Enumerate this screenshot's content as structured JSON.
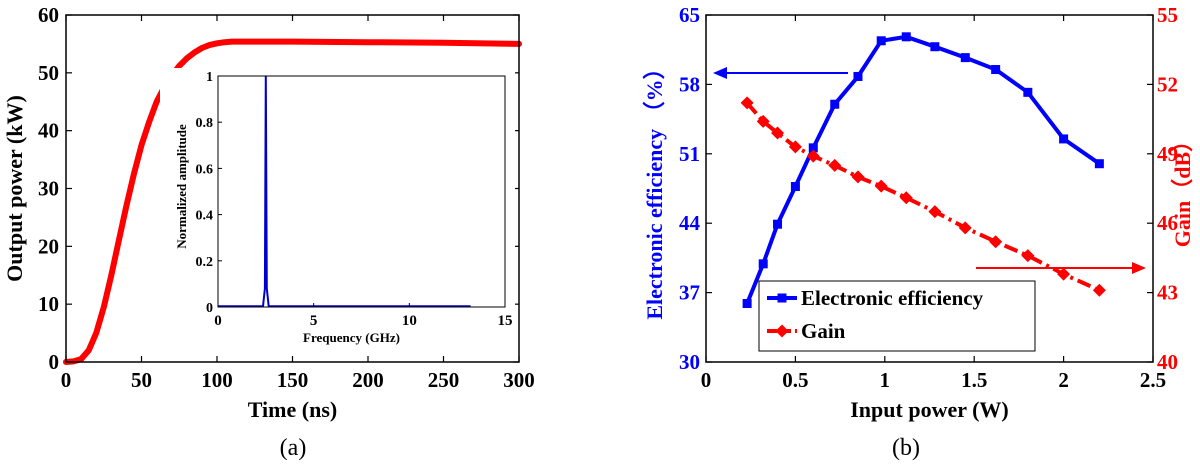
{
  "chart_data": [
    {
      "panel": "(a)",
      "type": "line",
      "xlabel": "Time (ns)",
      "ylabel": "Output power (kW)",
      "xlim": [
        0,
        300
      ],
      "ylim": [
        0,
        60
      ],
      "xticks": [
        "0",
        "50",
        "100",
        "150",
        "200",
        "250",
        "300"
      ],
      "yticks": [
        "0",
        "10",
        "20",
        "30",
        "40",
        "50",
        "60"
      ],
      "grid": false,
      "series": [
        {
          "color": "#ff0000",
          "x": [
            0,
            5,
            10,
            15,
            20,
            25,
            30,
            35,
            40,
            45,
            50,
            55,
            60,
            65,
            70,
            75,
            80,
            85,
            90,
            95,
            100,
            105,
            110,
            115,
            120,
            130,
            150,
            200,
            250,
            300
          ],
          "y": [
            0,
            0.1,
            0.5,
            2,
            5,
            9.5,
            15,
            21,
            27,
            32.5,
            37.5,
            41.5,
            45,
            47.5,
            49.5,
            51.2,
            52.5,
            53.5,
            54.3,
            54.8,
            55.1,
            55.3,
            55.4,
            55.4,
            55.4,
            55.4,
            55.4,
            55.3,
            55.2,
            55.0
          ]
        }
      ],
      "inset": {
        "type": "line",
        "xlabel": "Frequency (GHz)",
        "ylabel": "Normalized amplitude",
        "xlim": [
          0,
          15
        ],
        "ylim": [
          0,
          1
        ],
        "xticks": [
          "0",
          "5",
          "10",
          "15"
        ],
        "yticks": [
          "0",
          "0.2",
          "0.4",
          "0.6",
          "0.8",
          "1"
        ],
        "series": [
          {
            "color": "#0000cc",
            "x": [
              0,
              2.35,
              2.45,
              2.5,
              2.55,
              2.65,
              5,
              13.2
            ],
            "y": [
              0.003,
              0.003,
              0.08,
              1.0,
              0.08,
              0.003,
              0.003,
              0.003
            ]
          }
        ]
      }
    },
    {
      "panel": "(b)",
      "type": "line",
      "xlabel": "Input power (W)",
      "ylabel_left": "Electronic efficiency （%）",
      "ylabel_right": "Gain（dB）",
      "xlim": [
        0,
        2.5
      ],
      "ylim_left": [
        30,
        65
      ],
      "ylim_right": [
        40,
        55
      ],
      "xticks": [
        "0",
        "0.5",
        "1",
        "1.5",
        "2",
        "2.5"
      ],
      "yticks_left": [
        "30",
        "37",
        "44",
        "51",
        "58",
        "65"
      ],
      "yticks_right": [
        "40",
        "43",
        "46",
        "49",
        "52",
        "55"
      ],
      "legend_position": "bottom-left",
      "grid": false,
      "series": [
        {
          "name": "Electronic efficiency",
          "axis": "left",
          "color": "#0000ff",
          "marker": "square",
          "x": [
            0.23,
            0.32,
            0.4,
            0.5,
            0.6,
            0.72,
            0.85,
            0.98,
            1.12,
            1.28,
            1.45,
            1.62,
            1.8,
            2.0,
            2.2
          ],
          "y": [
            35.9,
            39.9,
            43.9,
            47.7,
            51.6,
            56.0,
            58.8,
            62.4,
            62.8,
            61.8,
            60.7,
            59.5,
            57.2,
            52.5,
            50.0
          ]
        },
        {
          "name": "Gain",
          "axis": "right",
          "color": "#ff0000",
          "marker": "diamond",
          "x": [
            0.23,
            0.32,
            0.4,
            0.5,
            0.6,
            0.72,
            0.85,
            0.98,
            1.12,
            1.28,
            1.45,
            1.62,
            1.8,
            2.0,
            2.2
          ],
          "y": [
            51.2,
            50.4,
            49.9,
            49.3,
            48.9,
            48.5,
            48.0,
            47.6,
            47.1,
            46.5,
            45.8,
            45.2,
            44.6,
            43.8,
            43.1
          ]
        }
      ],
      "annotations": [
        {
          "type": "arrow",
          "direction": "left",
          "color": "#0000ff",
          "meaning": "efficiency uses left axis"
        },
        {
          "type": "arrow",
          "direction": "right",
          "color": "#ff0000",
          "meaning": "gain uses right axis"
        }
      ]
    }
  ],
  "captions": {
    "a": "(a)",
    "b": "(b)"
  },
  "colors": {
    "left_axis": "#0000ff",
    "right_axis": "#ff0000"
  }
}
